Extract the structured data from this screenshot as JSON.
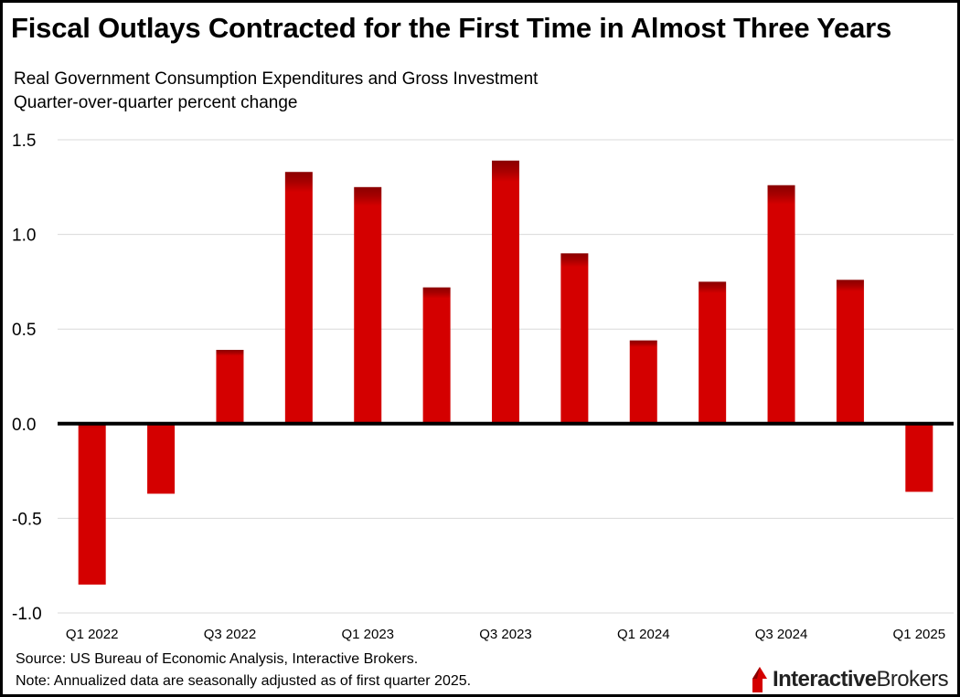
{
  "title": "Fiscal Outlays Contracted for the First Time in Almost Three Years",
  "subtitle_line1": "Real Government Consumption Expenditures and Gross Investment",
  "subtitle_line2": "Quarter-over-quarter percent change",
  "source": "Source: US Bureau of Economic Analysis, Interactive Brokers.",
  "note": "Note: Annualized data are seasonally adjusted as of first quarter 2025.",
  "logo": {
    "part1": "Interactive",
    "part2": "Brokers"
  },
  "colors": {
    "bar": "#d40000",
    "bar_top": "#8a0000",
    "grid": "#d9d9d9",
    "axis": "#000000"
  },
  "chart_data": {
    "type": "bar",
    "categories": [
      "Q1 2022",
      "Q2 2022",
      "Q3 2022",
      "Q4 2022",
      "Q1 2023",
      "Q2 2023",
      "Q3 2023",
      "Q4 2023",
      "Q1 2024",
      "Q2 2024",
      "Q3 2024",
      "Q4 2024",
      "Q1 2025"
    ],
    "tick_labels": [
      "Q1 2022",
      "",
      "Q3 2022",
      "",
      "Q1 2023",
      "",
      "Q3 2023",
      "",
      "Q1 2024",
      "",
      "Q3 2024",
      "",
      "Q1 2025"
    ],
    "values": [
      -0.85,
      -0.37,
      0.39,
      1.33,
      1.25,
      0.72,
      1.39,
      0.9,
      0.44,
      0.75,
      1.26,
      0.76,
      -0.36
    ],
    "ylim": [
      -1.0,
      1.5
    ],
    "yticks": [
      "1.5",
      "1.0",
      "0.5",
      "0.0",
      "-0.5",
      "-1.0"
    ],
    "grid": true
  }
}
